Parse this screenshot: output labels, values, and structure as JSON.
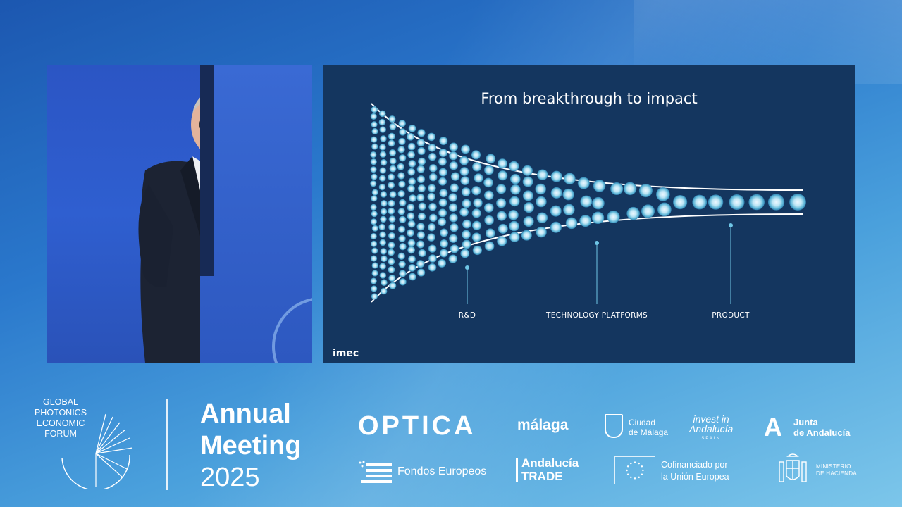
{
  "slide": {
    "title": "From breakthrough to impact",
    "stages": [
      {
        "label": "R&D"
      },
      {
        "label": "TECHNOLOGY PLATFORMS"
      },
      {
        "label": "PRODUCT"
      }
    ],
    "logo": "imec",
    "background_color": "#14365f"
  },
  "event": {
    "organizer_lines": [
      "GLOBAL",
      "PHOTONICS",
      "ECONOMIC",
      "FORUM"
    ],
    "title_line1": "Annual",
    "title_line2": "Meeting",
    "year": "2025"
  },
  "sponsors": {
    "optica": "OPTICA",
    "malaga": "málaga",
    "ciudad_line1": "Ciudad",
    "ciudad_line2": "de Málaga",
    "invest": "invest in",
    "invest_line2": "Andalucía",
    "invest_small": "SPAIN",
    "junta_line1": "Junta",
    "junta_line2": "de Andalucía",
    "fondos": "Fondos Europeos",
    "trade_line1": "Andalucía",
    "trade_line2": "TRADE",
    "cofin_line1": "Cofinanciado por",
    "cofin_line2": "la Unión Europea",
    "hacienda_line1": "MINISTERIO",
    "hacienda_line2": "DE HACIENDA"
  }
}
